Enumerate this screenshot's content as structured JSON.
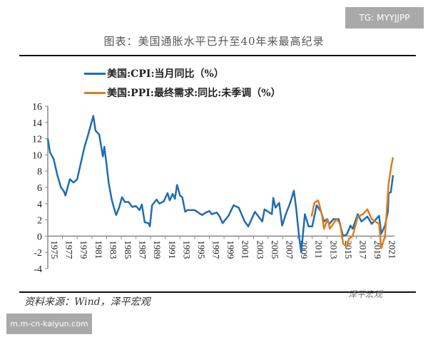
{
  "watermark_top": "TG: MYYJJPP",
  "watermark_bottom": "m.m-cn-kaiyun.com",
  "footer": {
    "source": "资料来源：Wind，泽平宏观",
    "logo_text": "泽平宏观"
  },
  "chart_data": {
    "type": "line",
    "title": "图表：美国通胀水平已升至40年来最高纪录",
    "xlabel": "",
    "ylabel": "",
    "ylim": [
      -4,
      16
    ],
    "yticks": [
      16,
      14,
      12,
      10,
      8,
      6,
      4,
      2,
      0,
      -2,
      -4
    ],
    "xlim": [
      1975,
      2022
    ],
    "xticks": [
      "1975",
      "1977",
      "1979",
      "1981",
      "1983",
      "1985",
      "1987",
      "1989",
      "1991",
      "1993",
      "1995",
      "1997",
      "1999",
      "2001",
      "2003",
      "2005",
      "2007",
      "2009",
      "2011",
      "2013",
      "2015",
      "2017",
      "2019",
      "2021"
    ],
    "legend_position": "top-left",
    "grid": false,
    "series": [
      {
        "name": "美国:CPI:当月同比（%）",
        "color": "#1f6db3",
        "points": [
          [
            1975,
            12
          ],
          [
            1975.3,
            10.3
          ],
          [
            1975.8,
            9.5
          ],
          [
            1976.3,
            7.5
          ],
          [
            1976.8,
            6
          ],
          [
            1977.2,
            5.5
          ],
          [
            1977.4,
            5
          ],
          [
            1977.7,
            6
          ],
          [
            1978,
            7
          ],
          [
            1978.5,
            6.6
          ],
          [
            1979,
            7
          ],
          [
            1979.5,
            9
          ],
          [
            1980,
            11
          ],
          [
            1980.5,
            12.5
          ],
          [
            1981.2,
            14.8
          ],
          [
            1981.5,
            13
          ],
          [
            1982,
            12.5
          ],
          [
            1982.5,
            9.8
          ],
          [
            1982.7,
            11
          ],
          [
            1983.3,
            6.5
          ],
          [
            1983.7,
            4.5
          ],
          [
            1984,
            3.5
          ],
          [
            1984.3,
            2.6
          ],
          [
            1984.7,
            3.5
          ],
          [
            1985.1,
            4.8
          ],
          [
            1985.5,
            4.2
          ],
          [
            1986,
            4.2
          ],
          [
            1986.5,
            3.6
          ],
          [
            1987,
            3.7
          ],
          [
            1987.5,
            3.2
          ],
          [
            1987.8,
            3.9
          ],
          [
            1988.2,
            1.7
          ],
          [
            1988.7,
            1.6
          ],
          [
            1988.9,
            1.2
          ],
          [
            1989.2,
            3.8
          ],
          [
            1989.8,
            4.5
          ],
          [
            1990.2,
            4
          ],
          [
            1990.8,
            4.3
          ],
          [
            1991.3,
            5.3
          ],
          [
            1991.6,
            4.4
          ],
          [
            1992,
            5.2
          ],
          [
            1992.3,
            4.6
          ],
          [
            1992.6,
            6.3
          ],
          [
            1993,
            5
          ],
          [
            1993.3,
            4.8
          ],
          [
            1993.7,
            3
          ],
          [
            1994,
            3.2
          ],
          [
            1995,
            3.2
          ],
          [
            1996,
            2.6
          ],
          [
            1996.5,
            2.9
          ],
          [
            1997,
            3.1
          ],
          [
            1997.3,
            2.7
          ],
          [
            1998,
            2.9
          ],
          [
            1998.4,
            2.4
          ],
          [
            1998.8,
            1.6
          ],
          [
            1999.6,
            2.5
          ],
          [
            2000.3,
            3.8
          ],
          [
            2001,
            3.5
          ],
          [
            2001.8,
            1.8
          ],
          [
            2002.3,
            1.2
          ],
          [
            2003.2,
            3.0
          ],
          [
            2004.2,
            1.8
          ],
          [
            2004.5,
            3.3
          ],
          [
            2005.5,
            2.7
          ],
          [
            2005.7,
            4.7
          ],
          [
            2006,
            3.5
          ],
          [
            2006.5,
            4.1
          ],
          [
            2006.9,
            1.3
          ],
          [
            2007.4,
            2.7
          ],
          [
            2008,
            4.1
          ],
          [
            2008.5,
            5.6
          ],
          [
            2008.8,
            3.5
          ],
          [
            2009.2,
            0
          ],
          [
            2009.5,
            -2
          ],
          [
            2010,
            2.7
          ],
          [
            2010.5,
            1.2
          ],
          [
            2011,
            1.2
          ],
          [
            2011.6,
            3.8
          ],
          [
            2012.2,
            3
          ],
          [
            2012.6,
            1.8
          ],
          [
            2013,
            2.1
          ],
          [
            2013.3,
            1.5
          ],
          [
            2013.9,
            2.1
          ],
          [
            2014.6,
            2.1
          ],
          [
            2015.2,
            0
          ],
          [
            2015.7,
            0.2
          ],
          [
            2016.2,
            1.3
          ],
          [
            2016.5,
            0.9
          ],
          [
            2017.2,
            2.7
          ],
          [
            2017.7,
            1.8
          ],
          [
            2018.5,
            2.4
          ],
          [
            2019.1,
            1.5
          ],
          [
            2020.1,
            2.5
          ],
          [
            2020.4,
            0.3
          ],
          [
            2020.9,
            1.3
          ],
          [
            2021.3,
            3
          ],
          [
            2021.4,
            5.3
          ],
          [
            2021.7,
            5.4
          ],
          [
            2022,
            7.5
          ]
        ]
      },
      {
        "name": "美国:PPI:最终需求:同比:未季调（%）",
        "color": "#e07b1f",
        "points": [
          [
            2010.9,
            2.4
          ],
          [
            2011.3,
            4.1
          ],
          [
            2011.8,
            4.4
          ],
          [
            2012.3,
            2.7
          ],
          [
            2012.6,
            0.9
          ],
          [
            2013.1,
            2.1
          ],
          [
            2013.4,
            0.9
          ],
          [
            2014.3,
            2.1
          ],
          [
            2014.8,
            1.5
          ],
          [
            2015.2,
            -0.9
          ],
          [
            2015.7,
            -1.3
          ],
          [
            2016,
            -0.3
          ],
          [
            2016.5,
            0
          ],
          [
            2017.2,
            2.4
          ],
          [
            2017.9,
            2.7
          ],
          [
            2018.5,
            3.3
          ],
          [
            2019.1,
            2.1
          ],
          [
            2020.1,
            1.5
          ],
          [
            2020.4,
            -1.5
          ],
          [
            2020.9,
            0
          ],
          [
            2021.4,
            6.5
          ],
          [
            2021.8,
            8.8
          ],
          [
            2022,
            9.7
          ]
        ]
      }
    ]
  }
}
